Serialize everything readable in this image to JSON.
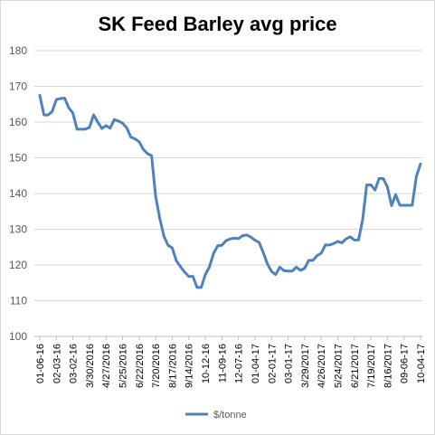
{
  "chart_data": {
    "type": "line",
    "title": "SK Feed Barley avg price",
    "xlabel": "",
    "ylabel": "",
    "ylim": [
      100,
      180
    ],
    "yticks": [
      100,
      110,
      120,
      130,
      140,
      150,
      160,
      170,
      180
    ],
    "grid": true,
    "legend": "bottom",
    "x_tick_labels": [
      "01-06-16",
      "02-03-16",
      "03-02-16",
      "3/30/2016",
      "4/27/2016",
      "5/25/2016",
      "6/22/2016",
      "7/20/2016",
      "8/17/2016",
      "9/14/2016",
      "10-12-16",
      "11-09-16",
      "12-07-16",
      "01-04-17",
      "02-01-17",
      "03-01-17",
      "3/29/2017",
      "4/26/2017",
      "5/24/2017",
      "6/21/2017",
      "7/19/2017",
      "8/16/2017",
      "09-06-17",
      "10-04-17"
    ],
    "series": [
      {
        "name": "$/tonne",
        "color": "#4f81bd",
        "values": [
          167.5,
          162,
          162,
          163,
          166.3,
          166.6,
          166.7,
          164,
          162.5,
          158,
          158,
          158,
          158.5,
          162,
          160,
          158.2,
          159,
          158.3,
          160.7,
          160.3,
          159.7,
          158.4,
          155.8,
          155.3,
          154.5,
          152.4,
          151.2,
          150.6,
          139.2,
          133,
          128,
          125.5,
          124.8,
          121.2,
          119.5,
          118,
          116.8,
          116.8,
          113.7,
          113.7,
          117.3,
          119.5,
          123.3,
          125.4,
          125.5,
          126.8,
          127.3,
          127.5,
          127.4,
          128.2,
          128.4,
          127.8,
          126.9,
          126.3,
          123.5,
          120.3,
          118.2,
          117.3,
          119.4,
          118.4,
          118.3,
          118.3,
          119.4,
          118.5,
          119.1,
          121.3,
          121.3,
          122.6,
          123.3,
          125.6,
          125.6,
          126,
          126.6,
          126.2,
          127.3,
          127.9,
          127,
          127,
          132.5,
          142.4,
          142.4,
          141,
          144.2,
          144.2,
          141.8,
          136.6,
          139.7,
          136.7,
          136.7,
          136.7,
          136.7,
          144.8,
          148.3
        ]
      }
    ]
  }
}
